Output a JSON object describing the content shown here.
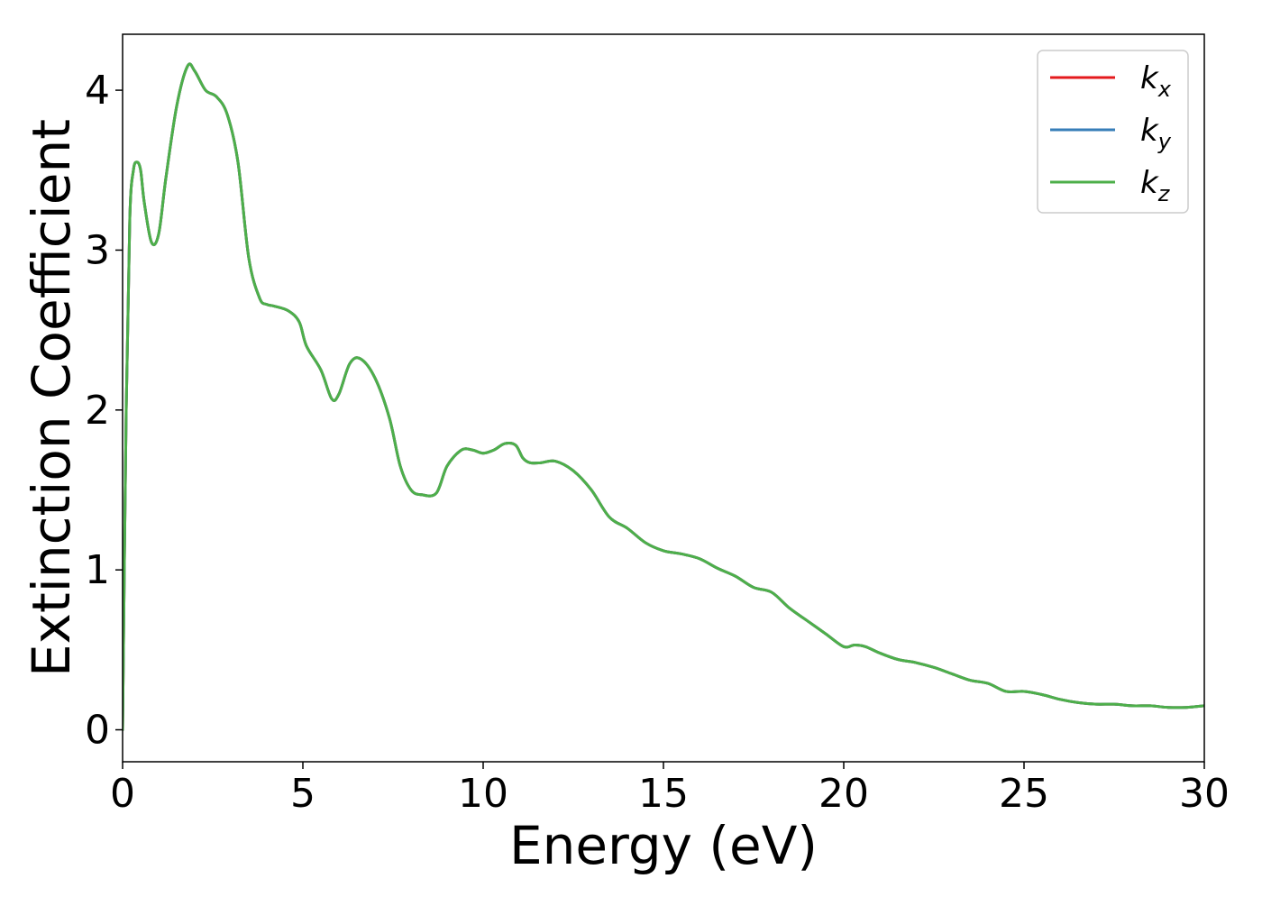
{
  "chart_data": {
    "type": "line",
    "xlabel": "Energy (eV)",
    "ylabel": "Extinction Coefficient",
    "xlim": [
      0,
      30
    ],
    "ylim": [
      -0.2,
      4.35
    ],
    "xticks": [
      0,
      5,
      10,
      15,
      20,
      25,
      30
    ],
    "yticks": [
      0,
      1,
      2,
      3,
      4
    ],
    "grid": false,
    "legend_position": "top-right",
    "x": [
      0,
      0.1,
      0.2,
      0.3,
      0.4,
      0.5,
      0.6,
      0.8,
      1.0,
      1.2,
      1.5,
      1.8,
      2.0,
      2.3,
      2.6,
      2.9,
      3.2,
      3.5,
      3.8,
      4.0,
      4.2,
      4.6,
      4.9,
      5.1,
      5.5,
      5.8,
      6.0,
      6.3,
      6.6,
      7.0,
      7.4,
      7.7,
      8.0,
      8.3,
      8.7,
      9.0,
      9.4,
      9.7,
      10.0,
      10.3,
      10.6,
      10.9,
      11.1,
      11.3,
      11.6,
      12.0,
      12.5,
      13.0,
      13.5,
      14.0,
      14.5,
      15.0,
      15.5,
      16.0,
      16.5,
      17.0,
      17.5,
      18.0,
      18.5,
      19.0,
      19.5,
      20.0,
      20.3,
      20.6,
      21.0,
      21.5,
      22.0,
      22.5,
      23.0,
      23.5,
      24.0,
      24.5,
      25.0,
      25.5,
      26.0,
      26.5,
      27.0,
      27.5,
      28.0,
      28.5,
      29.0,
      29.5,
      30.0
    ],
    "series": [
      {
        "name": "k_x",
        "color": "#e41a1c",
        "values": [
          0,
          2.0,
          3.2,
          3.5,
          3.55,
          3.5,
          3.3,
          3.05,
          3.1,
          3.45,
          3.9,
          4.15,
          4.12,
          4.0,
          3.96,
          3.85,
          3.55,
          2.95,
          2.7,
          2.66,
          2.65,
          2.62,
          2.55,
          2.4,
          2.25,
          2.07,
          2.1,
          2.29,
          2.32,
          2.2,
          1.95,
          1.65,
          1.5,
          1.47,
          1.48,
          1.65,
          1.75,
          1.75,
          1.73,
          1.75,
          1.79,
          1.78,
          1.7,
          1.67,
          1.67,
          1.68,
          1.62,
          1.5,
          1.33,
          1.26,
          1.17,
          1.12,
          1.1,
          1.07,
          1.01,
          0.96,
          0.89,
          0.86,
          0.76,
          0.68,
          0.6,
          0.52,
          0.53,
          0.52,
          0.48,
          0.44,
          0.42,
          0.39,
          0.35,
          0.31,
          0.29,
          0.24,
          0.24,
          0.22,
          0.19,
          0.17,
          0.16,
          0.16,
          0.15,
          0.15,
          0.14,
          0.14,
          0.15
        ]
      },
      {
        "name": "k_y",
        "color": "#377eb8",
        "values": [
          0,
          2.0,
          3.2,
          3.5,
          3.55,
          3.5,
          3.3,
          3.05,
          3.1,
          3.45,
          3.9,
          4.15,
          4.12,
          4.0,
          3.96,
          3.85,
          3.55,
          2.95,
          2.7,
          2.66,
          2.65,
          2.62,
          2.55,
          2.4,
          2.25,
          2.07,
          2.1,
          2.29,
          2.32,
          2.2,
          1.95,
          1.65,
          1.5,
          1.47,
          1.48,
          1.65,
          1.75,
          1.75,
          1.73,
          1.75,
          1.79,
          1.78,
          1.7,
          1.67,
          1.67,
          1.68,
          1.62,
          1.5,
          1.33,
          1.26,
          1.17,
          1.12,
          1.1,
          1.07,
          1.01,
          0.96,
          0.89,
          0.86,
          0.76,
          0.68,
          0.6,
          0.52,
          0.53,
          0.52,
          0.48,
          0.44,
          0.42,
          0.39,
          0.35,
          0.31,
          0.29,
          0.24,
          0.24,
          0.22,
          0.19,
          0.17,
          0.16,
          0.16,
          0.15,
          0.15,
          0.14,
          0.14,
          0.15
        ]
      },
      {
        "name": "k_z",
        "color": "#4daf4a",
        "values": [
          0,
          2.0,
          3.2,
          3.5,
          3.55,
          3.5,
          3.3,
          3.05,
          3.1,
          3.45,
          3.9,
          4.15,
          4.12,
          4.0,
          3.96,
          3.85,
          3.55,
          2.95,
          2.7,
          2.66,
          2.65,
          2.62,
          2.55,
          2.4,
          2.25,
          2.07,
          2.1,
          2.29,
          2.32,
          2.2,
          1.95,
          1.65,
          1.5,
          1.47,
          1.48,
          1.65,
          1.75,
          1.75,
          1.73,
          1.75,
          1.79,
          1.78,
          1.7,
          1.67,
          1.67,
          1.68,
          1.62,
          1.5,
          1.33,
          1.26,
          1.17,
          1.12,
          1.1,
          1.07,
          1.01,
          0.96,
          0.89,
          0.86,
          0.76,
          0.68,
          0.6,
          0.52,
          0.53,
          0.52,
          0.48,
          0.44,
          0.42,
          0.39,
          0.35,
          0.31,
          0.29,
          0.24,
          0.24,
          0.22,
          0.19,
          0.17,
          0.16,
          0.16,
          0.15,
          0.15,
          0.14,
          0.14,
          0.15
        ]
      }
    ],
    "legend": [
      {
        "base": "k",
        "sub": "x",
        "color": "#e41a1c"
      },
      {
        "base": "k",
        "sub": "y",
        "color": "#377eb8"
      },
      {
        "base": "k",
        "sub": "z",
        "color": "#4daf4a"
      }
    ]
  }
}
